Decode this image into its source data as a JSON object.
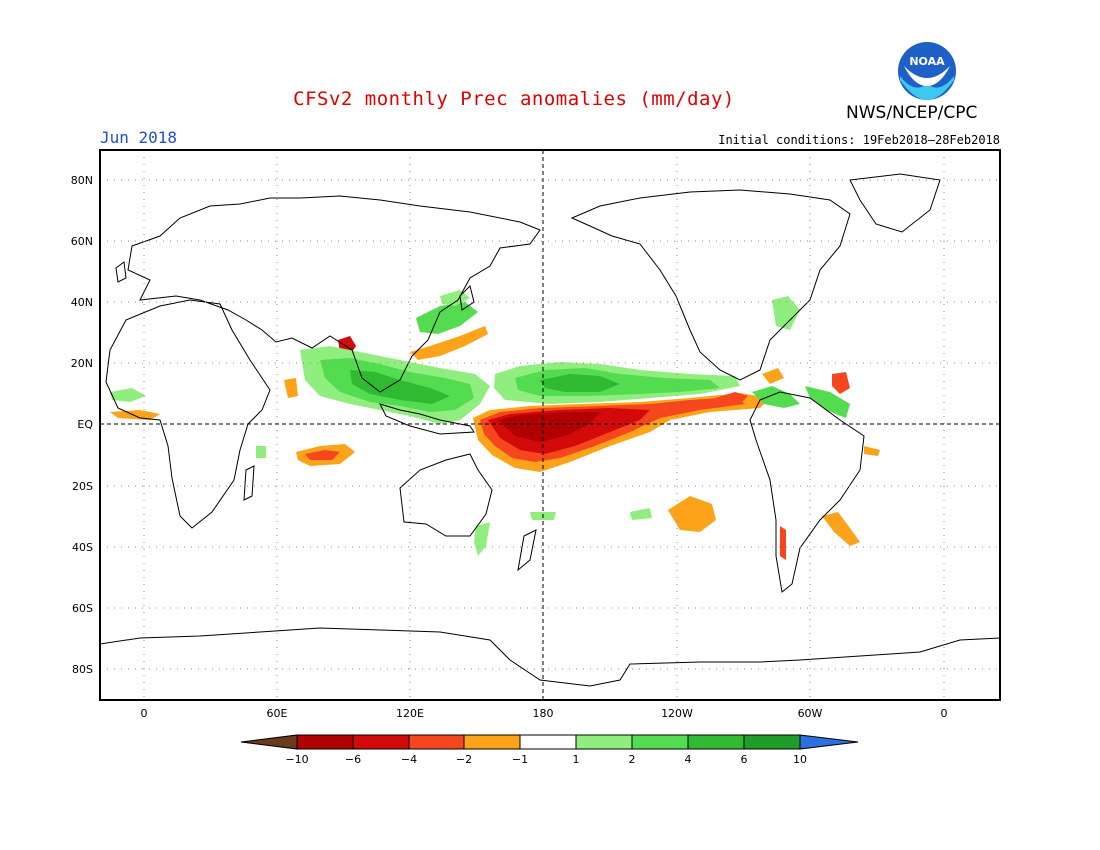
{
  "title": "CFSv2 monthly Prec anomalies (mm/day)",
  "organization": "NWS/NCEP/CPC",
  "logo_text": "NOAA",
  "month": "Jun 2018",
  "initial_conditions": "Initial conditions: 19Feb2018–28Feb2018",
  "lat_labels": [
    "80N",
    "60N",
    "40N",
    "20N",
    "EQ",
    "20S",
    "40S",
    "60S",
    "80S"
  ],
  "lon_labels": [
    "0",
    "60E",
    "120E",
    "180",
    "120W",
    "60W",
    "0"
  ],
  "colorbar": {
    "labels": [
      "−10",
      "−6",
      "−4",
      "−2",
      "−1",
      "1",
      "2",
      "4",
      "6",
      "10"
    ],
    "colors": [
      "#6b3a1e",
      "#b10000",
      "#d20a0a",
      "#f5461e",
      "#fca31a",
      "#ffffff",
      "#90ee7e",
      "#54dc50",
      "#30ba32",
      "#1e9e28",
      "#2b6fe0"
    ]
  },
  "colors": {
    "dry_strong": "#b40000",
    "dry_mid": "#d41a10",
    "dry_light": "#f5461e",
    "dry_weak": "#fba31a",
    "wet_weak": "#90ee7e",
    "wet_mid": "#54dc50",
    "wet_strong": "#30ba32"
  }
}
